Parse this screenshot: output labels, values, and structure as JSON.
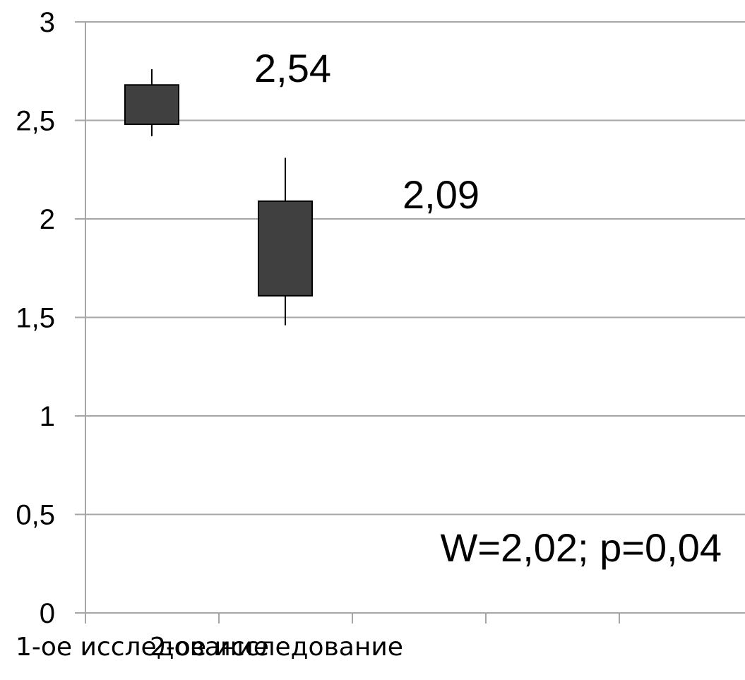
{
  "chart_data": {
    "type": "candlestick",
    "ylim": [
      0,
      3
    ],
    "y_ticks": [
      "0",
      "0,5",
      "1",
      "1,5",
      "2",
      "2,5",
      "3"
    ],
    "y_tick_values": [
      0,
      0.5,
      1,
      1.5,
      2,
      2.5,
      3
    ],
    "grid": true,
    "categories": [
      "1-ое исследование",
      "2-ое исследование"
    ],
    "series": [
      {
        "high": 2.76,
        "box_top": 2.68,
        "box_bottom": 2.48,
        "low": 2.42
      },
      {
        "high": 2.31,
        "box_top": 2.09,
        "box_bottom": 1.61,
        "low": 1.46
      }
    ],
    "data_labels": [
      "2,54",
      "2,09"
    ],
    "annotation": "W=2,02; p=0,04",
    "colors": {
      "box_fill": "#404040",
      "grid": "#a6a6a6",
      "axis": "#a6a6a6"
    }
  }
}
